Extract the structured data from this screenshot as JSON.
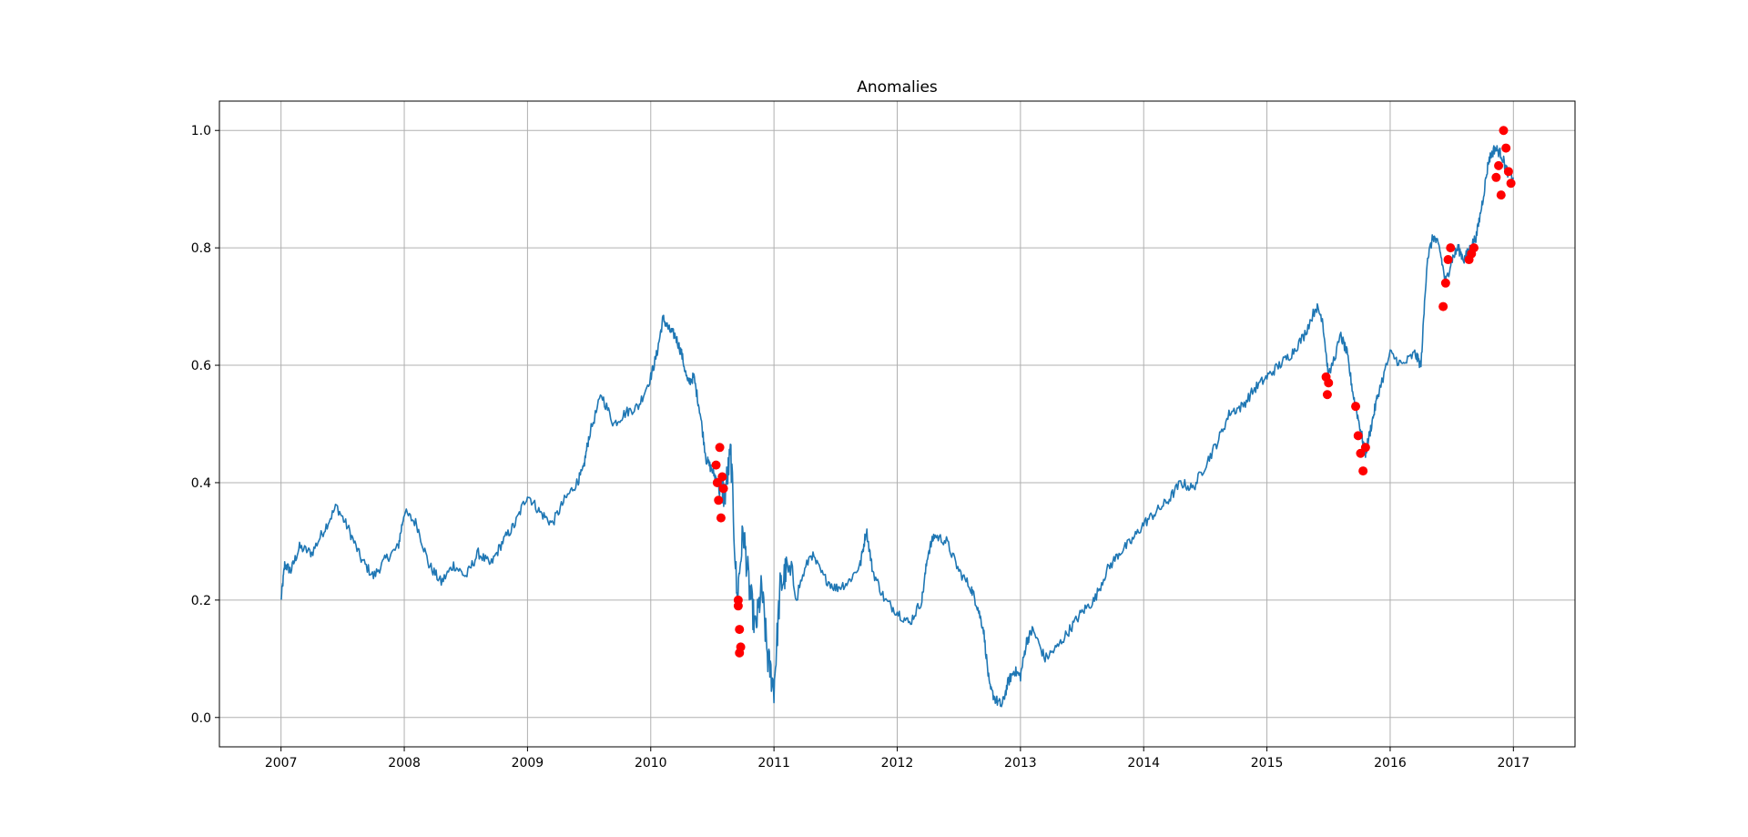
{
  "chart_data": {
    "type": "line",
    "title": "Anomalies",
    "xlabel": "",
    "ylabel": "",
    "xlim": [
      2006.5,
      2017.5
    ],
    "ylim": [
      -0.05,
      1.05
    ],
    "grid": true,
    "x_ticks": [
      "2007",
      "2008",
      "2009",
      "2010",
      "2011",
      "2012",
      "2013",
      "2014",
      "2015",
      "2016",
      "2017"
    ],
    "y_ticks": [
      "0.0",
      "0.2",
      "0.4",
      "0.6",
      "0.8",
      "1.0"
    ],
    "colors": {
      "line": "#1f77b4",
      "anomaly": "#ff0000"
    },
    "series": [
      {
        "kind": "line",
        "x": [
          2007.0,
          2007.03,
          2007.08,
          2007.15,
          2007.25,
          2007.35,
          2007.45,
          2007.55,
          2007.65,
          2007.75,
          2007.85,
          2007.95,
          2008.0,
          2008.1,
          2008.2,
          2008.3,
          2008.4,
          2008.5,
          2008.6,
          2008.7,
          2008.8,
          2008.9,
          2009.0,
          2009.1,
          2009.2,
          2009.3,
          2009.4,
          2009.45,
          2009.5,
          2009.6,
          2009.7,
          2009.8,
          2009.9,
          2010.0,
          2010.05,
          2010.1,
          2010.15,
          2010.2,
          2010.25,
          2010.3,
          2010.35,
          2010.4,
          2010.45,
          2010.5,
          2010.55,
          2010.6,
          2010.65,
          2010.7,
          2010.75,
          2010.8,
          2010.85,
          2010.9,
          2010.95,
          2011.0,
          2011.05,
          2011.1,
          2011.2,
          2011.3,
          2011.4,
          2011.5,
          2011.6,
          2011.7,
          2011.75,
          2011.8,
          2011.9,
          2012.0,
          2012.1,
          2012.2,
          2012.25,
          2012.3,
          2012.4,
          2012.5,
          2012.6,
          2012.65,
          2012.7,
          2012.75,
          2012.8,
          2012.85,
          2012.9,
          2012.95,
          2013.0,
          2013.05,
          2013.1,
          2013.2,
          2013.3,
          2013.4,
          2013.5,
          2013.6,
          2013.7,
          2013.8,
          2013.9,
          2014.0,
          2014.1,
          2014.2,
          2014.3,
          2014.4,
          2014.5,
          2014.6,
          2014.7,
          2014.8,
          2014.9,
          2015.0,
          2015.1,
          2015.2,
          2015.3,
          2015.4,
          2015.45,
          2015.5,
          2015.6,
          2015.65,
          2015.7,
          2015.75,
          2015.8,
          2015.85,
          2015.9,
          2016.0,
          2016.1,
          2016.2,
          2016.25,
          2016.3,
          2016.35,
          2016.4,
          2016.45,
          2016.5,
          2016.55,
          2016.6,
          2016.65,
          2016.7,
          2016.75,
          2016.8,
          2016.85,
          2016.9,
          2016.95,
          2017.0
        ],
        "y": [
          0.2,
          0.26,
          0.25,
          0.29,
          0.28,
          0.32,
          0.36,
          0.32,
          0.27,
          0.24,
          0.27,
          0.29,
          0.35,
          0.33,
          0.26,
          0.23,
          0.26,
          0.24,
          0.28,
          0.26,
          0.3,
          0.33,
          0.38,
          0.35,
          0.33,
          0.37,
          0.4,
          0.42,
          0.48,
          0.55,
          0.5,
          0.52,
          0.53,
          0.58,
          0.62,
          0.68,
          0.66,
          0.65,
          0.62,
          0.57,
          0.58,
          0.52,
          0.44,
          0.42,
          0.4,
          0.38,
          0.45,
          0.2,
          0.32,
          0.22,
          0.15,
          0.22,
          0.1,
          0.05,
          0.22,
          0.25,
          0.22,
          0.28,
          0.24,
          0.22,
          0.23,
          0.26,
          0.32,
          0.25,
          0.2,
          0.18,
          0.16,
          0.2,
          0.28,
          0.31,
          0.3,
          0.25,
          0.22,
          0.19,
          0.15,
          0.05,
          0.03,
          0.02,
          0.06,
          0.08,
          0.07,
          0.13,
          0.15,
          0.1,
          0.12,
          0.15,
          0.18,
          0.2,
          0.25,
          0.28,
          0.3,
          0.33,
          0.35,
          0.37,
          0.4,
          0.39,
          0.43,
          0.47,
          0.52,
          0.53,
          0.56,
          0.58,
          0.6,
          0.62,
          0.65,
          0.7,
          0.68,
          0.58,
          0.65,
          0.62,
          0.55,
          0.5,
          0.45,
          0.5,
          0.55,
          0.62,
          0.6,
          0.62,
          0.6,
          0.78,
          0.82,
          0.8,
          0.74,
          0.78,
          0.8,
          0.78,
          0.8,
          0.82,
          0.88,
          0.95,
          0.97,
          0.96,
          0.93,
          0.92
        ]
      },
      {
        "kind": "scatter",
        "x": [
          2010.53,
          2010.54,
          2010.55,
          2010.56,
          2010.57,
          2010.58,
          2010.59,
          2010.71,
          2010.71,
          2010.72,
          2010.73,
          2010.72,
          2015.48,
          2015.49,
          2015.5,
          2015.72,
          2015.74,
          2015.76,
          2015.78,
          2015.8,
          2016.43,
          2016.45,
          2016.47,
          2016.49,
          2016.64,
          2016.66,
          2016.68,
          2016.86,
          2016.88,
          2016.9,
          2016.92,
          2016.94,
          2016.96,
          2016.98
        ],
        "y": [
          0.43,
          0.4,
          0.37,
          0.46,
          0.34,
          0.41,
          0.39,
          0.2,
          0.19,
          0.15,
          0.12,
          0.11,
          0.58,
          0.55,
          0.57,
          0.53,
          0.48,
          0.45,
          0.42,
          0.46,
          0.7,
          0.74,
          0.78,
          0.8,
          0.78,
          0.79,
          0.8,
          0.92,
          0.94,
          0.89,
          1.0,
          0.97,
          0.93,
          0.91
        ]
      }
    ]
  }
}
